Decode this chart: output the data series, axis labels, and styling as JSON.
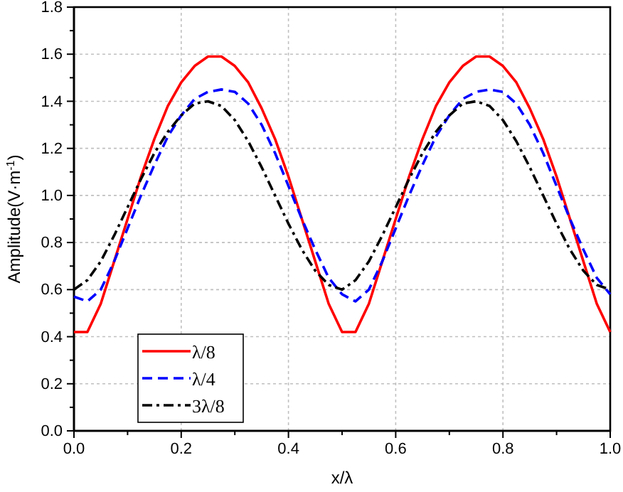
{
  "chart_data": {
    "type": "line",
    "xlabel": "x/λ",
    "ylabel": "Amplitude(V·m$^{-1}$)",
    "x": [
      0,
      0.025,
      0.05,
      0.075,
      0.1,
      0.125,
      0.15,
      0.175,
      0.2,
      0.225,
      0.25,
      0.275,
      0.3,
      0.325,
      0.35,
      0.375,
      0.4,
      0.425,
      0.45,
      0.475,
      0.5,
      0.525,
      0.55,
      0.575,
      0.6,
      0.625,
      0.65,
      0.675,
      0.7,
      0.725,
      0.75,
      0.775,
      0.8,
      0.825,
      0.85,
      0.875,
      0.9,
      0.925,
      0.95,
      0.975,
      1
    ],
    "series": [
      {
        "name": "λ/8",
        "color": "#ff0000",
        "line_style": "solid",
        "values": [
          0.42,
          0.42,
          0.54,
          0.72,
          0.9,
          1.08,
          1.24,
          1.38,
          1.48,
          1.55,
          1.59,
          1.59,
          1.55,
          1.48,
          1.37,
          1.24,
          1.08,
          0.9,
          0.72,
          0.54,
          0.42,
          0.42,
          0.54,
          0.72,
          0.9,
          1.08,
          1.24,
          1.38,
          1.48,
          1.55,
          1.59,
          1.59,
          1.55,
          1.48,
          1.37,
          1.24,
          1.08,
          0.9,
          0.72,
          0.54,
          0.42
        ]
      },
      {
        "name": "λ/4",
        "color": "#0000ff",
        "line_style": "dashed",
        "values": [
          0.57,
          0.55,
          0.6,
          0.72,
          0.86,
          1.0,
          1.13,
          1.25,
          1.34,
          1.41,
          1.44,
          1.45,
          1.44,
          1.39,
          1.3,
          1.18,
          1.04,
          0.9,
          0.77,
          0.65,
          0.58,
          0.55,
          0.6,
          0.72,
          0.86,
          1.0,
          1.13,
          1.25,
          1.34,
          1.41,
          1.44,
          1.45,
          1.44,
          1.39,
          1.3,
          1.18,
          1.04,
          0.9,
          0.77,
          0.65,
          0.58
        ]
      },
      {
        "name": "3λ/8",
        "color": "#000000",
        "line_style": "dashdot",
        "values": [
          0.6,
          0.64,
          0.72,
          0.83,
          0.95,
          1.07,
          1.18,
          1.27,
          1.34,
          1.39,
          1.4,
          1.38,
          1.32,
          1.23,
          1.12,
          1.0,
          0.88,
          0.77,
          0.68,
          0.62,
          0.6,
          0.64,
          0.72,
          0.83,
          0.95,
          1.07,
          1.18,
          1.27,
          1.34,
          1.39,
          1.4,
          1.38,
          1.32,
          1.23,
          1.12,
          1.0,
          0.88,
          0.77,
          0.68,
          0.62,
          0.6
        ]
      }
    ],
    "xlim": [
      0,
      1
    ],
    "xticks": [
      {
        "value": 0,
        "label": "0.0"
      },
      {
        "value": 0.2,
        "label": "0.2"
      },
      {
        "value": 0.4,
        "label": "0.4"
      },
      {
        "value": 0.6,
        "label": "0.6"
      },
      {
        "value": 0.8,
        "label": "0.8"
      },
      {
        "value": 1,
        "label": "1.0"
      }
    ],
    "ylim": [
      0,
      1.8
    ],
    "yticks": [
      {
        "value": 0,
        "label": "0.0"
      },
      {
        "value": 0.2,
        "label": "0.2"
      },
      {
        "value": 0.4,
        "label": "0.4"
      },
      {
        "value": 0.6,
        "label": "0.6"
      },
      {
        "value": 0.8,
        "label": "0.8"
      },
      {
        "value": 1,
        "label": "1.0"
      },
      {
        "value": 1.2,
        "label": "1.2"
      },
      {
        "value": 1.4,
        "label": "1.4"
      },
      {
        "value": 1.6,
        "label": "1.6"
      },
      {
        "value": 1.8,
        "label": "1.8"
      }
    ],
    "grid": true,
    "legend": "bottom left",
    "marker": "none"
  }
}
